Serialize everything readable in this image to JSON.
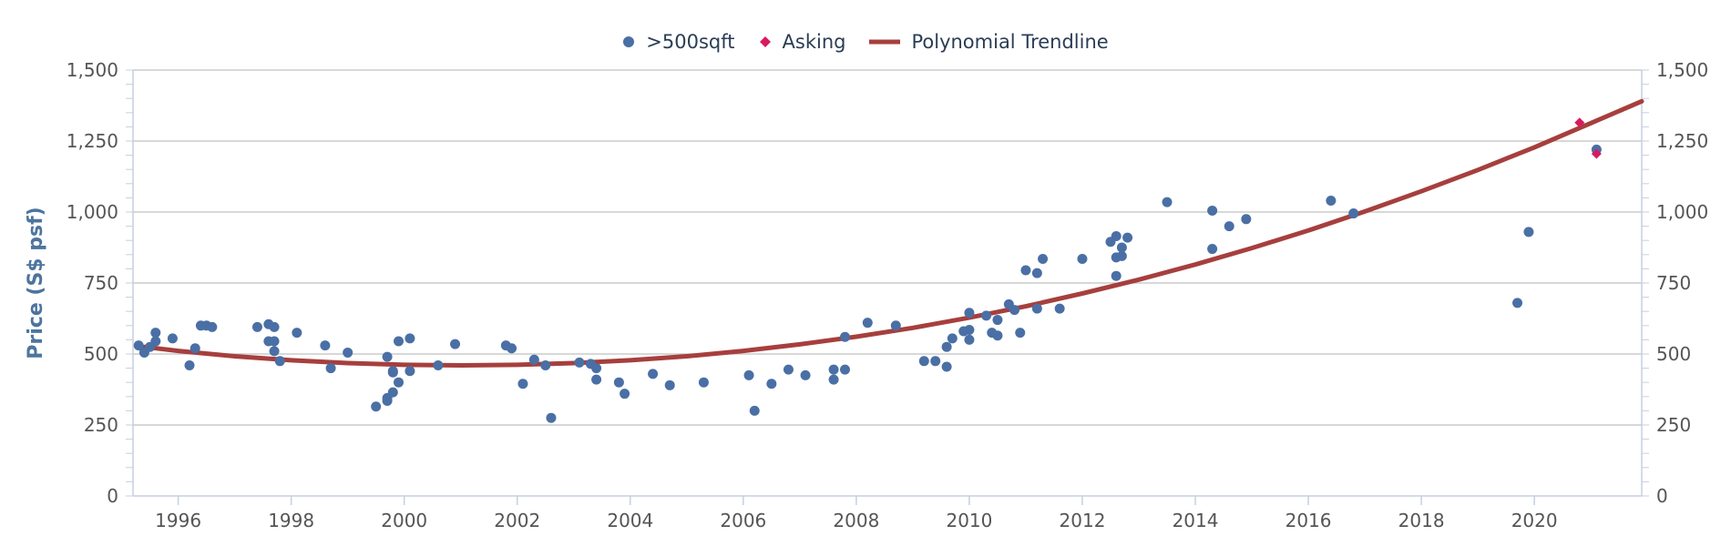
{
  "chart_data": {
    "type": "scatter",
    "ylabel": "Price (S$ psf)",
    "ylim": [
      0,
      1500
    ],
    "xlim": [
      1995.2,
      2021.9
    ],
    "yticks": [
      0,
      250,
      500,
      750,
      1000,
      1250,
      1500
    ],
    "ytick_labels": [
      "0",
      "250",
      "500",
      "750",
      "1,000",
      "1,250",
      "1,500"
    ],
    "xticks": [
      1996,
      1998,
      2000,
      2002,
      2004,
      2006,
      2008,
      2010,
      2012,
      2014,
      2016,
      2018,
      2020
    ],
    "xtick_labels": [
      "1996",
      "1998",
      "2000",
      "2002",
      "2004",
      "2006",
      "2008",
      "2010",
      "2012",
      "2014",
      "2016",
      "2018",
      "2020"
    ],
    "grid": "horizontal",
    "right_axis": true,
    "legend_position": "top-center",
    "colors": {
      "scatter": "#4a6fa5",
      "asking": "#d81b60",
      "trend": "#a63f3d",
      "axis": "#c6cfe0",
      "grid": "#c0c0c0"
    },
    "series": [
      {
        "name": ">500sqft",
        "marker": "circle",
        "points": [
          [
            1995.3,
            530
          ],
          [
            1995.4,
            505
          ],
          [
            1995.5,
            525
          ],
          [
            1995.6,
            545
          ],
          [
            1995.6,
            575
          ],
          [
            1995.9,
            555
          ],
          [
            1996.2,
            460
          ],
          [
            1996.3,
            520
          ],
          [
            1996.4,
            600
          ],
          [
            1996.5,
            600
          ],
          [
            1996.6,
            595
          ],
          [
            1997.4,
            595
          ],
          [
            1997.6,
            545
          ],
          [
            1997.6,
            605
          ],
          [
            1997.7,
            510
          ],
          [
            1997.7,
            545
          ],
          [
            1997.7,
            595
          ],
          [
            1997.8,
            475
          ],
          [
            1998.1,
            575
          ],
          [
            1998.6,
            530
          ],
          [
            1998.7,
            450
          ],
          [
            1999.0,
            505
          ],
          [
            1999.5,
            315
          ],
          [
            1999.7,
            335
          ],
          [
            1999.7,
            345
          ],
          [
            1999.7,
            490
          ],
          [
            1999.8,
            365
          ],
          [
            1999.8,
            435
          ],
          [
            1999.8,
            440
          ],
          [
            1999.9,
            545
          ],
          [
            1999.9,
            400
          ],
          [
            2000.1,
            555
          ],
          [
            2000.1,
            440
          ],
          [
            2000.6,
            460
          ],
          [
            2000.9,
            535
          ],
          [
            2001.8,
            530
          ],
          [
            2001.9,
            520
          ],
          [
            2002.1,
            395
          ],
          [
            2002.3,
            480
          ],
          [
            2002.5,
            460
          ],
          [
            2002.6,
            275
          ],
          [
            2003.1,
            470
          ],
          [
            2003.3,
            465
          ],
          [
            2003.4,
            450
          ],
          [
            2003.4,
            410
          ],
          [
            2003.8,
            400
          ],
          [
            2003.9,
            360
          ],
          [
            2004.4,
            430
          ],
          [
            2004.7,
            390
          ],
          [
            2005.3,
            400
          ],
          [
            2006.1,
            425
          ],
          [
            2006.2,
            300
          ],
          [
            2006.5,
            395
          ],
          [
            2006.8,
            445
          ],
          [
            2007.1,
            425
          ],
          [
            2007.6,
            410
          ],
          [
            2007.6,
            445
          ],
          [
            2007.8,
            560
          ],
          [
            2007.8,
            445
          ],
          [
            2008.2,
            610
          ],
          [
            2008.7,
            600
          ],
          [
            2009.2,
            475
          ],
          [
            2009.4,
            475
          ],
          [
            2009.6,
            525
          ],
          [
            2009.6,
            455
          ],
          [
            2009.7,
            555
          ],
          [
            2009.9,
            580
          ],
          [
            2010.0,
            645
          ],
          [
            2010.0,
            585
          ],
          [
            2010.0,
            550
          ],
          [
            2010.3,
            635
          ],
          [
            2010.4,
            575
          ],
          [
            2010.5,
            620
          ],
          [
            2010.5,
            565
          ],
          [
            2010.7,
            675
          ],
          [
            2010.8,
            655
          ],
          [
            2010.9,
            575
          ],
          [
            2011.0,
            795
          ],
          [
            2011.2,
            785
          ],
          [
            2011.2,
            660
          ],
          [
            2011.3,
            835
          ],
          [
            2011.6,
            660
          ],
          [
            2012.0,
            835
          ],
          [
            2012.5,
            895
          ],
          [
            2012.6,
            915
          ],
          [
            2012.6,
            775
          ],
          [
            2012.6,
            840
          ],
          [
            2012.7,
            845
          ],
          [
            2012.7,
            875
          ],
          [
            2012.8,
            910
          ],
          [
            2013.5,
            1035
          ],
          [
            2014.3,
            870
          ],
          [
            2014.3,
            1005
          ],
          [
            2014.6,
            950
          ],
          [
            2014.9,
            975
          ],
          [
            2016.4,
            1040
          ],
          [
            2016.8,
            995
          ],
          [
            2019.7,
            680
          ],
          [
            2019.9,
            930
          ],
          [
            2021.1,
            1220
          ]
        ]
      },
      {
        "name": "Asking",
        "marker": "diamond",
        "points": [
          [
            2020.8,
            1315
          ],
          [
            2021.1,
            1205
          ]
        ]
      },
      {
        "name": "Polynomial Trendline",
        "type": "line",
        "points": [
          [
            1995.4,
            525
          ],
          [
            1996.0,
            511
          ],
          [
            1997.0,
            492
          ],
          [
            1998.0,
            478
          ],
          [
            1999.0,
            468
          ],
          [
            2000.0,
            462
          ],
          [
            2001.0,
            460
          ],
          [
            2002.0,
            462
          ],
          [
            2003.0,
            468
          ],
          [
            2004.0,
            478
          ],
          [
            2005.0,
            492
          ],
          [
            2006.0,
            511
          ],
          [
            2007.0,
            534
          ],
          [
            2008.0,
            561
          ],
          [
            2009.0,
            592
          ],
          [
            2010.0,
            628
          ],
          [
            2011.0,
            668
          ],
          [
            2012.0,
            713
          ],
          [
            2013.0,
            762
          ],
          [
            2014.0,
            815
          ],
          [
            2015.0,
            873
          ],
          [
            2016.0,
            935
          ],
          [
            2017.0,
            1002
          ],
          [
            2018.0,
            1073
          ],
          [
            2019.0,
            1148
          ],
          [
            2020.0,
            1228
          ],
          [
            2021.0,
            1313
          ],
          [
            2021.9,
            1390
          ]
        ]
      }
    ]
  }
}
